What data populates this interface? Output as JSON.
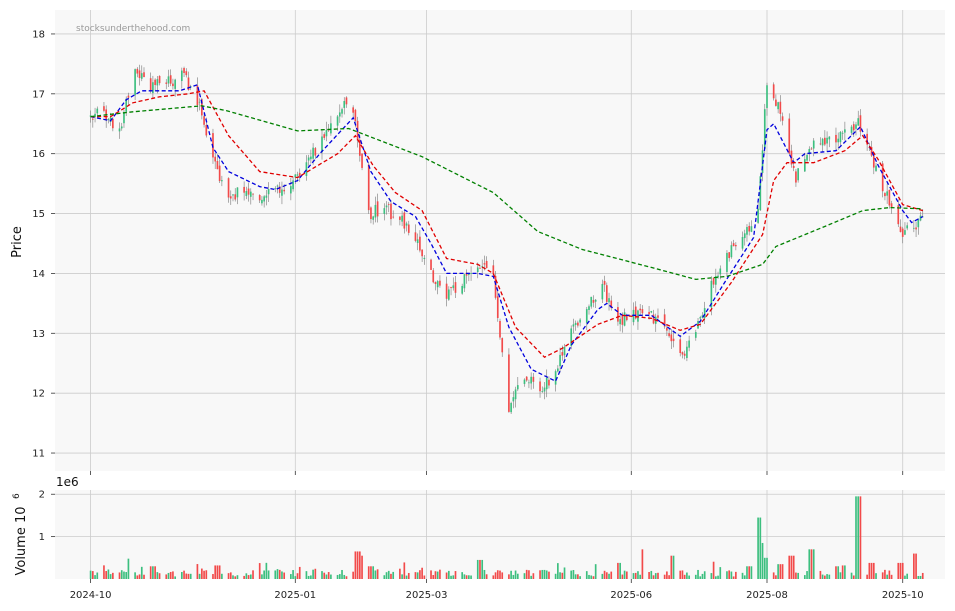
{
  "watermark": "stocksunderthehood.com",
  "colors": {
    "up": "#3cbf7f",
    "down": "#f24a4a",
    "ma_short": "#0000dd",
    "ma_mid": "#e00000",
    "ma_long": "#008000",
    "panel_bg": "#f8f8f8",
    "grid": "#cccccc"
  },
  "chart_data": [
    {
      "type": "candlestick",
      "ylabel": "Price",
      "ylim": [
        10.7,
        18.4
      ],
      "yticks": [
        11,
        12,
        13,
        14,
        15,
        16,
        17,
        18
      ],
      "xlim": [
        "2024-09-15",
        "2025-10-20"
      ],
      "xticks": [
        "2024-10-01",
        "2025-01-01",
        "2025-03-01",
        "2025-06-01",
        "2025-08-01",
        "2025-10-01"
      ],
      "xtick_labels": [
        "2024-10",
        "2025-01",
        "2025-03",
        "2025-06",
        "2025-08",
        "2025-10"
      ],
      "grid": true,
      "price_path": [
        [
          "2024-10-01",
          16.6
        ],
        [
          "2024-10-07",
          16.7
        ],
        [
          "2024-10-14",
          16.4
        ],
        [
          "2024-10-21",
          17.4
        ],
        [
          "2024-10-28",
          17.1
        ],
        [
          "2024-11-05",
          17.2
        ],
        [
          "2024-11-12",
          17.3
        ],
        [
          "2024-11-18",
          16.9
        ],
        [
          "2024-11-25",
          15.9
        ],
        [
          "2024-12-02",
          15.3
        ],
        [
          "2024-12-09",
          15.4
        ],
        [
          "2024-12-16",
          15.3
        ],
        [
          "2024-12-23",
          15.4
        ],
        [
          "2025-01-02",
          15.6
        ],
        [
          "2025-01-09",
          16.0
        ],
        [
          "2025-01-16",
          16.5
        ],
        [
          "2025-01-23",
          16.9
        ],
        [
          "2025-01-28",
          16.5
        ],
        [
          "2025-02-03",
          15.0
        ],
        [
          "2025-02-10",
          15.1
        ],
        [
          "2025-02-17",
          14.9
        ],
        [
          "2025-02-24",
          14.6
        ],
        [
          "2025-03-03",
          14.0
        ],
        [
          "2025-03-10",
          13.6
        ],
        [
          "2025-03-17",
          13.9
        ],
        [
          "2025-03-24",
          14.1
        ],
        [
          "2025-03-31",
          14.0
        ],
        [
          "2025-04-07",
          11.7
        ],
        [
          "2025-04-14",
          12.3
        ],
        [
          "2025-04-21",
          12.0
        ],
        [
          "2025-04-28",
          12.4
        ],
        [
          "2025-05-05",
          13.1
        ],
        [
          "2025-05-12",
          13.4
        ],
        [
          "2025-05-19",
          13.8
        ],
        [
          "2025-05-26",
          13.2
        ],
        [
          "2025-06-02",
          13.3
        ],
        [
          "2025-06-09",
          13.3
        ],
        [
          "2025-06-16",
          13.1
        ],
        [
          "2025-06-23",
          12.6
        ],
        [
          "2025-06-30",
          13.0
        ],
        [
          "2025-07-07",
          13.8
        ],
        [
          "2025-07-14",
          14.3
        ],
        [
          "2025-07-21",
          14.6
        ],
        [
          "2025-07-28",
          15.0
        ],
        [
          "2025-08-01",
          17.2
        ],
        [
          "2025-08-07",
          16.7
        ],
        [
          "2025-08-14",
          15.6
        ],
        [
          "2025-08-21",
          16.1
        ],
        [
          "2025-08-28",
          16.2
        ],
        [
          "2025-09-04",
          16.3
        ],
        [
          "2025-09-11",
          16.5
        ],
        [
          "2025-09-18",
          15.8
        ],
        [
          "2025-09-25",
          15.2
        ],
        [
          "2025-10-01",
          14.7
        ],
        [
          "2025-10-06",
          14.8
        ],
        [
          "2025-10-10",
          14.9
        ]
      ],
      "series": [
        {
          "style": "dashed",
          "color": "#0000dd",
          "points": [
            [
              "2024-10-01",
              16.62
            ],
            [
              "2024-10-10",
              16.55
            ],
            [
              "2024-10-17",
              16.9
            ],
            [
              "2024-10-24",
              17.05
            ],
            [
              "2024-11-01",
              17.05
            ],
            [
              "2024-11-10",
              17.05
            ],
            [
              "2024-11-18",
              17.15
            ],
            [
              "2024-11-25",
              16.1
            ],
            [
              "2024-12-02",
              15.7
            ],
            [
              "2024-12-16",
              15.45
            ],
            [
              "2024-12-23",
              15.4
            ],
            [
              "2025-01-02",
              15.55
            ],
            [
              "2025-01-12",
              16.0
            ],
            [
              "2025-01-22",
              16.4
            ],
            [
              "2025-01-27",
              16.6
            ],
            [
              "2025-02-04",
              15.7
            ],
            [
              "2025-02-13",
              15.2
            ],
            [
              "2025-02-24",
              14.95
            ],
            [
              "2025-03-03",
              14.5
            ],
            [
              "2025-03-10",
              14.0
            ],
            [
              "2025-03-24",
              14.0
            ],
            [
              "2025-03-31",
              13.95
            ],
            [
              "2025-04-07",
              13.1
            ],
            [
              "2025-04-17",
              12.4
            ],
            [
              "2025-04-28",
              12.2
            ],
            [
              "2025-05-05",
              12.8
            ],
            [
              "2025-05-17",
              13.4
            ],
            [
              "2025-05-21",
              13.5
            ],
            [
              "2025-05-28",
              13.3
            ],
            [
              "2025-06-10",
              13.3
            ],
            [
              "2025-06-23",
              12.95
            ],
            [
              "2025-07-02",
              13.2
            ],
            [
              "2025-07-13",
              13.85
            ],
            [
              "2025-07-26",
              14.6
            ],
            [
              "2025-08-01",
              16.4
            ],
            [
              "2025-08-04",
              16.5
            ],
            [
              "2025-08-13",
              15.85
            ],
            [
              "2025-08-18",
              16.0
            ],
            [
              "2025-09-01",
              16.05
            ],
            [
              "2025-09-12",
              16.45
            ],
            [
              "2025-09-20",
              15.8
            ],
            [
              "2025-10-01",
              15.05
            ],
            [
              "2025-10-05",
              14.85
            ],
            [
              "2025-10-10",
              14.95
            ]
          ]
        },
        {
          "style": "dashed",
          "color": "#e00000",
          "points": [
            [
              "2024-10-01",
              16.62
            ],
            [
              "2024-10-10",
              16.62
            ],
            [
              "2024-10-20",
              16.85
            ],
            [
              "2024-11-01",
              16.95
            ],
            [
              "2024-11-14",
              17.0
            ],
            [
              "2024-11-21",
              17.05
            ],
            [
              "2024-12-02",
              16.3
            ],
            [
              "2024-12-16",
              15.7
            ],
            [
              "2025-01-02",
              15.6
            ],
            [
              "2025-01-20",
              16.0
            ],
            [
              "2025-01-28",
              16.3
            ],
            [
              "2025-02-05",
              15.8
            ],
            [
              "2025-02-15",
              15.35
            ],
            [
              "2025-02-27",
              15.05
            ],
            [
              "2025-03-10",
              14.25
            ],
            [
              "2025-03-24",
              14.15
            ],
            [
              "2025-03-31",
              14.0
            ],
            [
              "2025-04-10",
              13.1
            ],
            [
              "2025-04-23",
              12.6
            ],
            [
              "2025-05-01",
              12.75
            ],
            [
              "2025-05-17",
              13.15
            ],
            [
              "2025-05-28",
              13.3
            ],
            [
              "2025-06-10",
              13.25
            ],
            [
              "2025-06-23",
              13.05
            ],
            [
              "2025-07-02",
              13.15
            ],
            [
              "2025-07-16",
              13.85
            ],
            [
              "2025-07-30",
              14.65
            ],
            [
              "2025-08-04",
              15.55
            ],
            [
              "2025-08-10",
              15.85
            ],
            [
              "2025-08-22",
              15.85
            ],
            [
              "2025-09-05",
              16.05
            ],
            [
              "2025-09-13",
              16.3
            ],
            [
              "2025-09-20",
              15.9
            ],
            [
              "2025-10-01",
              15.15
            ],
            [
              "2025-10-10",
              15.05
            ]
          ]
        },
        {
          "style": "dashed",
          "color": "#008000",
          "points": [
            [
              "2024-10-01",
              16.62
            ],
            [
              "2024-10-20",
              16.7
            ],
            [
              "2024-11-20",
              16.8
            ],
            [
              "2024-12-01",
              16.72
            ],
            [
              "2025-01-02",
              16.38
            ],
            [
              "2025-01-25",
              16.42
            ],
            [
              "2025-02-27",
              15.95
            ],
            [
              "2025-03-31",
              15.35
            ],
            [
              "2025-04-20",
              14.7
            ],
            [
              "2025-05-10",
              14.4
            ],
            [
              "2025-06-10",
              14.1
            ],
            [
              "2025-06-30",
              13.9
            ],
            [
              "2025-07-14",
              13.95
            ],
            [
              "2025-07-30",
              14.15
            ],
            [
              "2025-08-05",
              14.45
            ],
            [
              "2025-08-28",
              14.8
            ],
            [
              "2025-09-13",
              15.05
            ],
            [
              "2025-09-25",
              15.1
            ],
            [
              "2025-10-10",
              15.08
            ]
          ]
        }
      ]
    },
    {
      "type": "bar",
      "ylabel": "Volume  10",
      "ylabel_exponent": "6",
      "offset_text": "1e6",
      "ylim": [
        0,
        2.1
      ],
      "yticks": [
        1,
        2
      ],
      "xlim": [
        "2024-09-15",
        "2025-10-20"
      ],
      "grid": true,
      "baseline": 0.12,
      "spikes": [
        [
          "2024-10-19",
          0.48
        ],
        [
          "2024-10-29",
          0.3
        ],
        [
          "2024-11-27",
          0.32
        ],
        [
          "2025-01-29",
          0.65
        ],
        [
          "2025-01-31",
          0.55
        ],
        [
          "2025-02-04",
          0.3
        ],
        [
          "2025-03-25",
          0.45
        ],
        [
          "2025-05-17",
          0.35
        ],
        [
          "2025-05-26",
          0.38
        ],
        [
          "2025-06-07",
          0.7
        ],
        [
          "2025-06-20",
          0.55
        ],
        [
          "2025-07-24",
          0.3
        ],
        [
          "2025-07-28",
          1.45
        ],
        [
          "2025-07-29",
          0.85
        ],
        [
          "2025-08-01",
          0.5
        ],
        [
          "2025-08-07",
          0.35
        ],
        [
          "2025-08-12",
          0.55
        ],
        [
          "2025-08-21",
          0.7
        ],
        [
          "2025-09-01",
          0.3
        ],
        [
          "2025-09-05",
          0.32
        ],
        [
          "2025-09-11",
          1.95
        ],
        [
          "2025-09-17",
          0.38
        ],
        [
          "2025-09-30",
          0.38
        ],
        [
          "2025-10-06",
          0.6
        ]
      ]
    }
  ]
}
